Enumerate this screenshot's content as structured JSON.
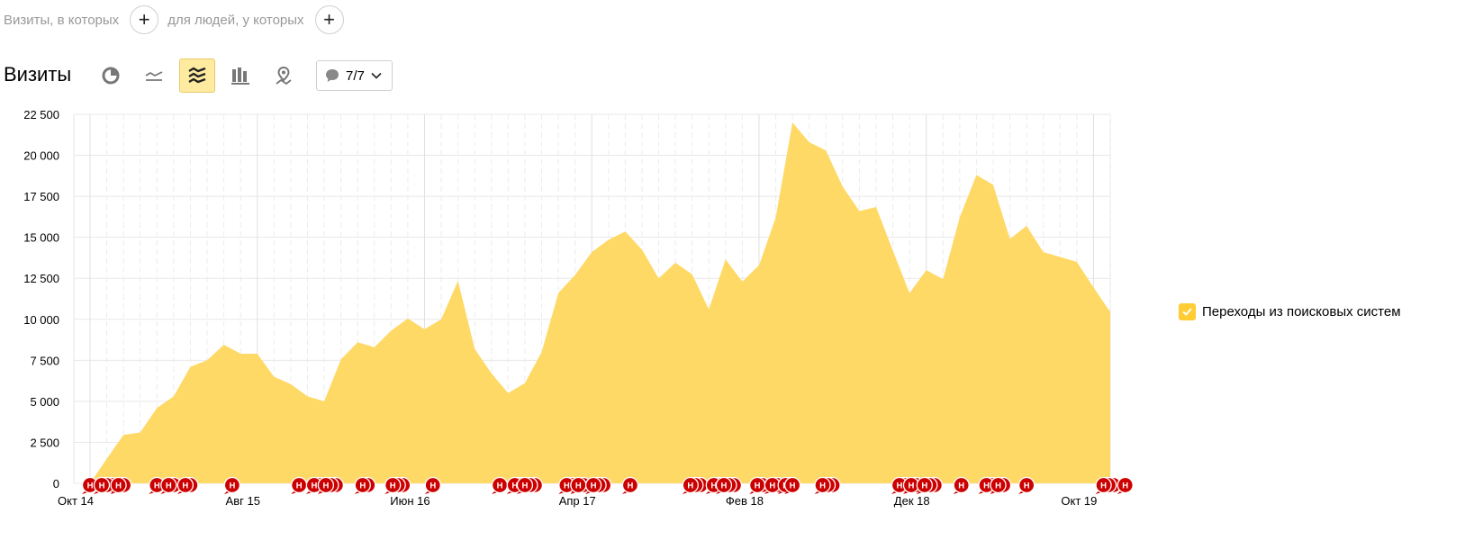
{
  "filters": {
    "visits_label": "Визиты, в которых",
    "people_label": "для людей, у которых",
    "add_symbol": "+"
  },
  "title": "Визиты",
  "toolbar": {
    "buttons": [
      {
        "icon": "pie-chart-icon",
        "active": false
      },
      {
        "icon": "line-chart-icon",
        "active": false
      },
      {
        "icon": "area-chart-icon",
        "active": true
      },
      {
        "icon": "bar-chart-icon",
        "active": false
      },
      {
        "icon": "map-icon",
        "active": false
      }
    ],
    "annotations_count": "7/7"
  },
  "legend": {
    "label": "Переходы из поисковых систем",
    "checked": true,
    "color": "#ffcc33"
  },
  "annotation_marker": {
    "letter": "Н",
    "color": "#cc0000"
  },
  "chart_data": {
    "type": "area",
    "series": [
      {
        "name": "Переходы из поисковых систем",
        "color": "#ffd966",
        "values": [
          0,
          1500,
          2950,
          3100,
          4600,
          5300,
          7100,
          7500,
          8450,
          7900,
          7900,
          6500,
          6050,
          5300,
          5000,
          7550,
          8600,
          8300,
          9300,
          10050,
          9400,
          10000,
          12350,
          8200,
          6700,
          5500,
          6100,
          8000,
          11600,
          12700,
          14100,
          14850,
          15350,
          14250,
          12500,
          13450,
          12750,
          10600,
          13650,
          12300,
          13300,
          16200,
          22000,
          20800,
          20300,
          18100,
          16600,
          16850,
          14200,
          11600,
          13000,
          12450,
          16200,
          18800,
          18200,
          14900,
          15700,
          14100,
          13800,
          13500,
          11950,
          10450
        ]
      }
    ],
    "x_ticks": [
      {
        "label": "Окт 14",
        "index": 0
      },
      {
        "label": "Авг 15",
        "index": 10
      },
      {
        "label": "Июн 16",
        "index": 20
      },
      {
        "label": "Апр 17",
        "index": 30
      },
      {
        "label": "Фев 18",
        "index": 40
      },
      {
        "label": "Дек 18",
        "index": 50
      },
      {
        "label": "Окт 19",
        "index": 60
      }
    ],
    "y_ticks": [
      "0",
      "2 500",
      "5 000",
      "7 500",
      "10 000",
      "12 500",
      "15 000",
      "17 500",
      "20 000",
      "22 500"
    ],
    "ylim": [
      0,
      22500
    ],
    "grid": true,
    "annotations": [
      {
        "index": 0,
        "count": 1,
        "letter": "Н"
      },
      {
        "index": 0.7,
        "count": 3,
        "letter": "Н"
      },
      {
        "index": 1.7,
        "count": 2,
        "letter": "Н"
      },
      {
        "index": 4,
        "count": 1,
        "letter": "Н"
      },
      {
        "index": 4.7,
        "count": 2,
        "letter": "Н"
      },
      {
        "index": 5.7,
        "count": 2,
        "letter": "Н"
      },
      {
        "index": 8.5,
        "count": 1,
        "letter": "Н"
      },
      {
        "index": 12.5,
        "count": 1,
        "letter": "Н"
      },
      {
        "index": 13.4,
        "count": 2,
        "letter": "Н"
      },
      {
        "index": 14.1,
        "count": 3,
        "letter": "Н"
      },
      {
        "index": 16.3,
        "count": 2,
        "letter": "Н"
      },
      {
        "index": 18.1,
        "count": 3,
        "letter": "Н"
      },
      {
        "index": 20.5,
        "count": 1,
        "letter": "Н"
      },
      {
        "index": 24.5,
        "count": 1,
        "letter": "Н"
      },
      {
        "index": 25.4,
        "count": 2,
        "letter": "Н"
      },
      {
        "index": 26,
        "count": 3,
        "letter": "Н"
      },
      {
        "index": 28.5,
        "count": 2,
        "letter": "Н"
      },
      {
        "index": 29.2,
        "count": 2,
        "letter": "Н"
      },
      {
        "index": 30.1,
        "count": 3,
        "letter": "Н"
      },
      {
        "index": 32.3,
        "count": 1,
        "letter": "Н"
      },
      {
        "index": 35.9,
        "count": 3,
        "letter": "Н"
      },
      {
        "index": 37.3,
        "count": 2,
        "letter": "Н"
      },
      {
        "index": 37.9,
        "count": 3,
        "letter": "Н"
      },
      {
        "index": 39.9,
        "count": 2,
        "letter": "Н"
      },
      {
        "index": 40.8,
        "count": 2,
        "letter": "Н"
      },
      {
        "index": 41.6,
        "count": 2,
        "letter": "Н"
      },
      {
        "index": 42,
        "count": 1,
        "letter": "Н"
      },
      {
        "index": 43.8,
        "count": 3,
        "letter": "Н"
      },
      {
        "index": 48.4,
        "count": 2,
        "letter": "Н"
      },
      {
        "index": 49.1,
        "count": 2,
        "letter": "Н"
      },
      {
        "index": 49.9,
        "count": 3,
        "letter": "Н"
      },
      {
        "index": 52.1,
        "count": 1,
        "letter": "Н"
      },
      {
        "index": 53.6,
        "count": 2,
        "letter": "Н"
      },
      {
        "index": 54.3,
        "count": 2,
        "letter": "Н"
      },
      {
        "index": 56,
        "count": 1,
        "letter": "Н"
      },
      {
        "index": 60.6,
        "count": 3,
        "letter": "Н"
      },
      {
        "index": 61.9,
        "count": 1,
        "letter": "Н"
      }
    ]
  }
}
